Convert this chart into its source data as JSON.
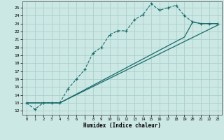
{
  "xlabel": "Humidex (Indice chaleur)",
  "bg_color": "#cce8e4",
  "grid_color": "#aacfcb",
  "line_color": "#1a6b6b",
  "xlim": [
    -0.5,
    23.5
  ],
  "ylim": [
    11.5,
    25.8
  ],
  "xticks": [
    0,
    1,
    2,
    3,
    4,
    5,
    6,
    7,
    8,
    9,
    10,
    11,
    12,
    13,
    14,
    15,
    16,
    17,
    18,
    19,
    20,
    21,
    22,
    23
  ],
  "yticks": [
    12,
    13,
    14,
    15,
    16,
    17,
    18,
    19,
    20,
    21,
    22,
    23,
    24,
    25
  ],
  "line1_x": [
    0,
    1,
    2,
    3,
    4,
    5,
    6,
    7,
    8,
    9,
    10,
    11,
    12,
    13,
    14,
    15,
    16,
    17,
    18,
    19,
    20,
    21,
    22,
    23
  ],
  "line1_y": [
    13.0,
    12.2,
    13.0,
    13.0,
    13.0,
    14.8,
    16.0,
    17.2,
    19.3,
    20.0,
    21.6,
    22.1,
    22.1,
    23.5,
    24.1,
    25.5,
    24.7,
    25.0,
    25.3,
    24.0,
    23.2,
    23.0,
    23.0,
    23.0
  ],
  "line2_x": [
    0,
    4,
    19,
    20,
    21,
    22,
    23
  ],
  "line2_y": [
    13.0,
    13.0,
    21.3,
    23.2,
    23.0,
    23.0,
    23.0
  ],
  "line3_x": [
    0,
    4,
    23
  ],
  "line3_y": [
    13.0,
    13.0,
    22.8
  ]
}
